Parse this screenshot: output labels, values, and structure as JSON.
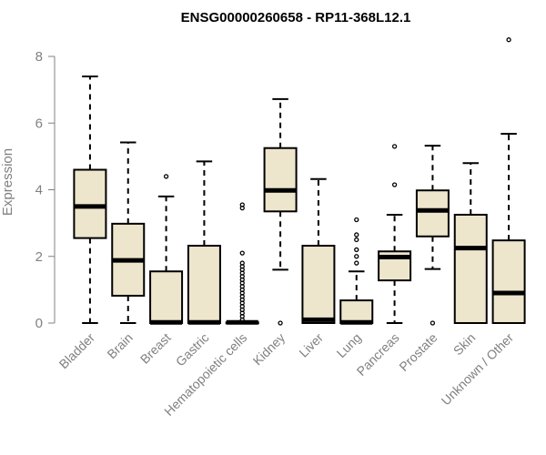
{
  "chart_data": {
    "type": "boxplot",
    "title": "ENSG00000260658 - RP11-368L12.1",
    "xlabel": "",
    "ylabel": "Expression",
    "ylim": [
      0,
      8.6
    ],
    "yticks": [
      0,
      2,
      4,
      6,
      8
    ],
    "box_fill": "#EDE6CC",
    "box_stroke": "#000000",
    "axis_color": "#808080",
    "categories": [
      "Bladder",
      "Brain",
      "Breast",
      "Gastric",
      "Hematopoietic cells",
      "Kidney",
      "Liver",
      "Lung",
      "Pancreas",
      "Prostate",
      "Skin",
      "Unknown / Other"
    ],
    "boxes": [
      {
        "name": "Bladder",
        "min": 0,
        "q1": 2.55,
        "median": 3.5,
        "q3": 4.6,
        "max": 7.4,
        "outliers": []
      },
      {
        "name": "Brain",
        "min": 0,
        "q1": 0.82,
        "median": 1.88,
        "q3": 2.98,
        "max": 5.42,
        "outliers": []
      },
      {
        "name": "Breast",
        "min": 0,
        "q1": 0,
        "median": 0.02,
        "q3": 1.55,
        "max": 3.8,
        "outliers": [
          4.4
        ]
      },
      {
        "name": "Gastric",
        "min": 0,
        "q1": 0,
        "median": 0.02,
        "q3": 2.32,
        "max": 4.85,
        "outliers": []
      },
      {
        "name": "Hematopoietic cells",
        "min": 0,
        "q1": 0,
        "median": 0.02,
        "q3": 0.02,
        "max": 0.05,
        "outliers": [
          0.1,
          0.2,
          0.3,
          0.4,
          0.5,
          0.6,
          0.7,
          0.8,
          0.9,
          1.0,
          1.1,
          1.2,
          1.3,
          1.4,
          1.5,
          1.6,
          1.7,
          1.8,
          2.1,
          3.45,
          3.55
        ]
      },
      {
        "name": "Kidney",
        "min": 1.6,
        "q1": 3.35,
        "median": 3.98,
        "q3": 5.25,
        "max": 6.72,
        "outliers": [
          0
        ]
      },
      {
        "name": "Liver",
        "min": 0,
        "q1": 0,
        "median": 0.1,
        "q3": 2.32,
        "max": 4.32,
        "outliers": []
      },
      {
        "name": "Lung",
        "min": 0,
        "q1": 0,
        "median": 0.02,
        "q3": 0.68,
        "max": 1.55,
        "outliers": [
          1.8,
          2.0,
          2.2,
          2.5,
          2.65,
          3.1
        ]
      },
      {
        "name": "Pancreas",
        "min": 0,
        "q1": 1.28,
        "median": 1.98,
        "q3": 2.15,
        "max": 3.25,
        "outliers": [
          4.15,
          5.3
        ]
      },
      {
        "name": "Prostate",
        "min": 1.62,
        "q1": 2.6,
        "median": 3.38,
        "q3": 3.98,
        "max": 5.32,
        "outliers": [
          0
        ]
      },
      {
        "name": "Skin",
        "min": 0,
        "q1": 0,
        "median": 2.25,
        "q3": 3.25,
        "max": 4.8,
        "outliers": []
      },
      {
        "name": "Unknown / Other",
        "min": 0,
        "q1": 0,
        "median": 0.9,
        "q3": 2.48,
        "max": 5.68,
        "outliers": [
          8.5
        ]
      }
    ]
  }
}
